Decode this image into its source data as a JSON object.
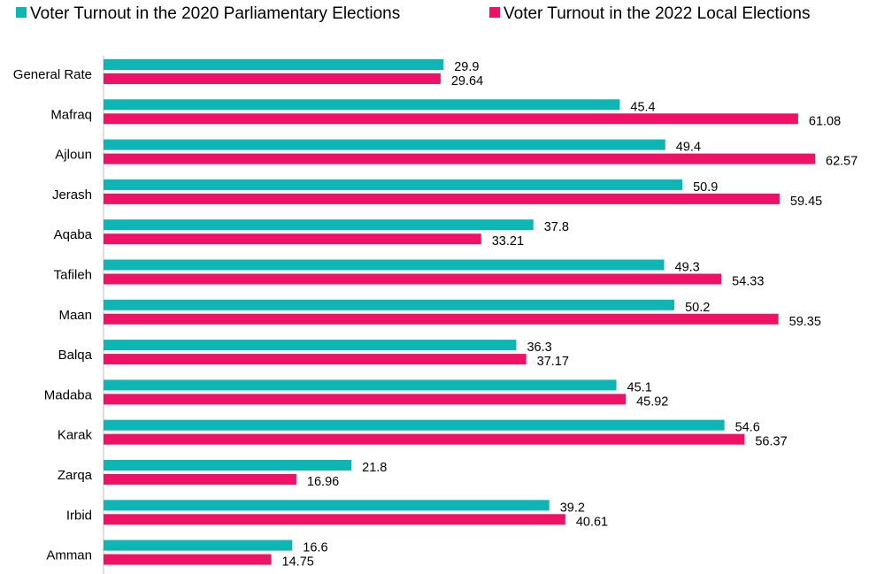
{
  "chart_data": {
    "type": "bar",
    "orientation": "horizontal",
    "title": "",
    "xlabel": "",
    "ylabel": "",
    "xlim": [
      0,
      70
    ],
    "grid": false,
    "legend_position": "top",
    "categories": [
      "General Rate",
      "Mafraq",
      "Ajloun",
      "Jerash",
      "Aqaba",
      "Tafileh",
      "Maan",
      "Balqa",
      "Madaba",
      "Karak",
      "Zarqa",
      "Irbid",
      "Amman"
    ],
    "series": [
      {
        "name": "Voter Turnout in the 2020 Parliamentary Elections",
        "color": "#0db5b5",
        "values": [
          29.9,
          45.4,
          49.4,
          50.9,
          37.8,
          49.3,
          50.2,
          36.3,
          45.1,
          54.6,
          21.8,
          39.2,
          16.6
        ],
        "labels": [
          "29.9",
          "45.4",
          "49.4",
          "50.9",
          "37.8",
          "49.3",
          "50.2",
          "36.3",
          "45.1",
          "54.6",
          "21.8",
          "39.2",
          "16.6"
        ]
      },
      {
        "name": "Voter Turnout in the 2022 Local Elections",
        "color": "#ee1166",
        "values": [
          29.64,
          61.08,
          62.57,
          59.45,
          33.21,
          54.33,
          59.35,
          37.17,
          45.92,
          56.37,
          16.96,
          40.61,
          14.75
        ],
        "labels": [
          "29.64",
          "61.08",
          "62.57",
          "59.45",
          "33.21",
          "54.33",
          "59.35",
          "37.17",
          "45.92",
          "56.37",
          "16.96",
          "40.61",
          "14.75"
        ]
      }
    ]
  }
}
